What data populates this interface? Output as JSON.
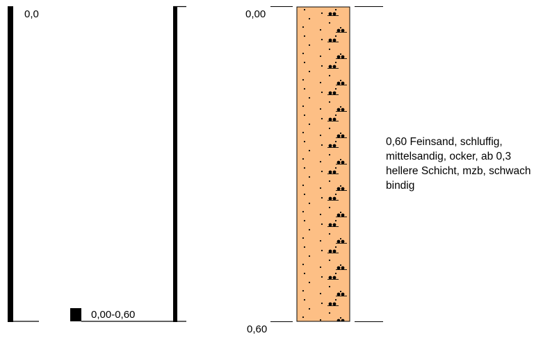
{
  "colors": {
    "soil_fill": "#fdbf85",
    "ink": "#000000",
    "background": "#ffffff"
  },
  "left_panel": {
    "top_depth_label": "0,0",
    "sample_label": "0,00-0,60"
  },
  "profile": {
    "top_depth_label": "0,00",
    "bottom_depth_label": "0,60",
    "soil_pattern": "fine-sand-with-medium-sand-dots",
    "layers": [
      {
        "from": 0.0,
        "to": 0.6,
        "description_lines": [
          "0,60  Feinsand, schluffig,",
          "mittelsandig, ocker, ab 0,3",
          "hellere Schicht, mzb, schwach",
          "bindig"
        ]
      }
    ]
  }
}
